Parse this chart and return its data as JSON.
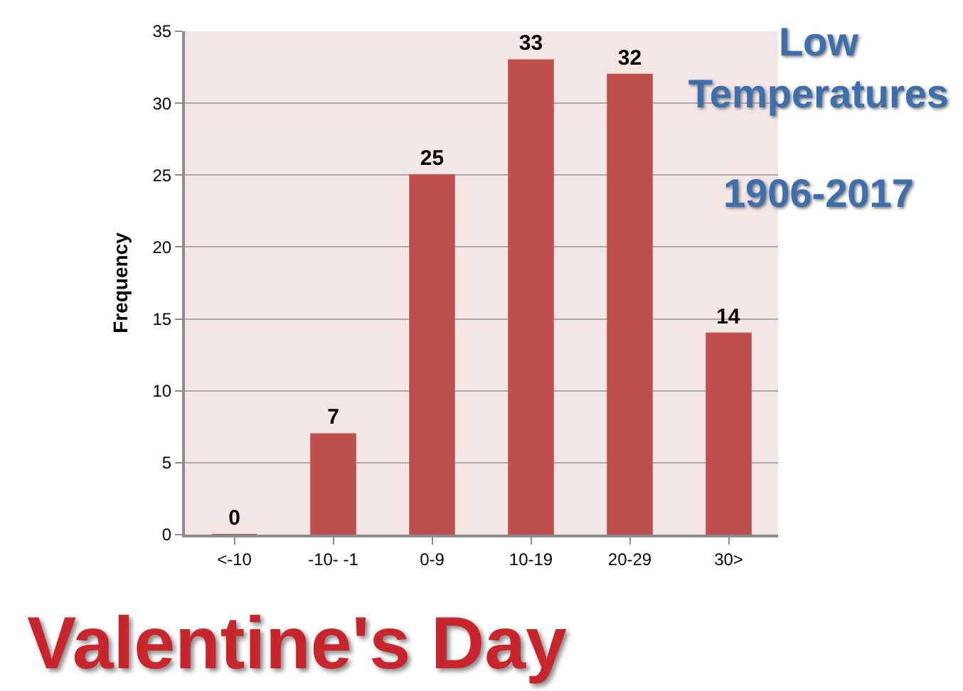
{
  "chart_data": {
    "type": "bar",
    "title": "Low Temperatures",
    "subtitle": "1906-2017",
    "ylabel": "Frequency",
    "categories": [
      "<-10",
      "-10- -1",
      "0-9",
      "10-19",
      "20-29",
      "30>"
    ],
    "values": [
      0,
      7,
      25,
      33,
      32,
      14
    ],
    "color": "#c0504d",
    "ylim": [
      0,
      35
    ],
    "yticks": [
      0,
      5,
      10,
      15,
      20,
      25,
      30,
      35
    ],
    "grid": "y",
    "data_labels": true,
    "annotations": [
      "Valentine's Day"
    ]
  }
}
